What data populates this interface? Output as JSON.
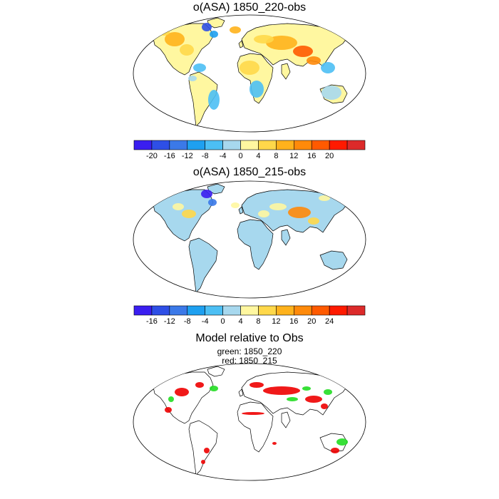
{
  "panels": [
    {
      "title": "o(ASA) 1850_220-obs"
    },
    {
      "title": "o(ASA) 1850_215-obs"
    },
    {
      "title": "Model relative to Obs",
      "legend": [
        "green: 1850_220",
        "red: 1850_215"
      ]
    }
  ],
  "colorbars": [
    {
      "colors": [
        "#3a1ef0",
        "#2e4fe6",
        "#3b79e8",
        "#1ea0f0",
        "#4cbff4",
        "#a7d8ee",
        "#fff7a0",
        "#ffd84a",
        "#ffb21c",
        "#ff8a0a",
        "#ff5a00",
        "#ff1a00",
        "#dc2a2a"
      ],
      "labels": [
        "-20",
        "-16",
        "-12",
        "-8",
        "-4",
        "0",
        "4",
        "8",
        "12",
        "16",
        "20"
      ]
    },
    {
      "colors": [
        "#3a1ef0",
        "#2e4fe6",
        "#3b79e8",
        "#1ea0f0",
        "#4cbff4",
        "#a7d8ee",
        "#fff7a0",
        "#ffd84a",
        "#ffb21c",
        "#ff8a0a",
        "#ff5a00",
        "#ff1a00",
        "#dc2a2a"
      ],
      "labels": [
        "-16",
        "-12",
        "-8",
        "-4",
        "0",
        "4",
        "8",
        "12",
        "16",
        "20",
        "24"
      ]
    }
  ],
  "colors": {
    "model_220": "#22dd22",
    "model_215": "#ee0000",
    "ocean": "#ffffff",
    "coast": "#000000"
  }
}
